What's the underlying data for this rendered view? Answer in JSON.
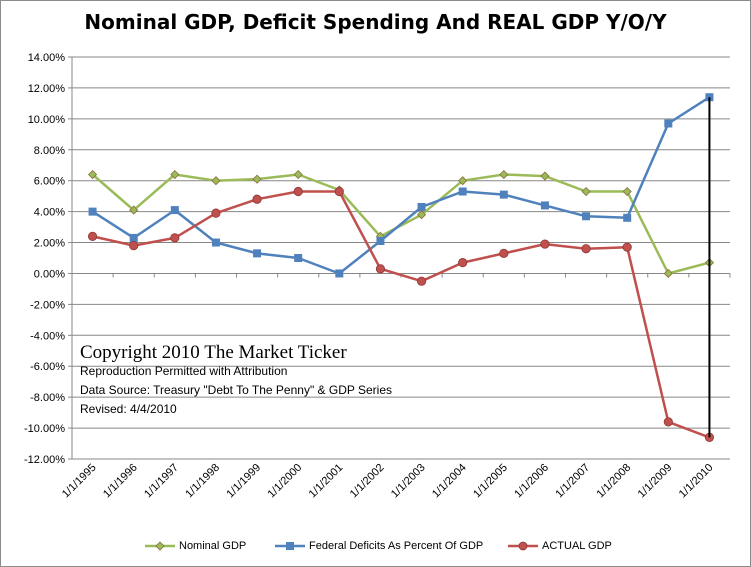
{
  "chart_data": {
    "type": "line",
    "title": "Nominal GDP, Deficit Spending And REAL GDP Y/O/Y",
    "xlabel": "",
    "ylabel": "",
    "categories": [
      "1/1/1995",
      "1/1/1996",
      "1/1/1997",
      "1/1/1998",
      "1/1/1999",
      "1/1/2000",
      "1/1/2001",
      "1/1/2002",
      "1/1/2003",
      "1/1/2004",
      "1/1/2005",
      "1/1/2006",
      "1/1/2007",
      "1/1/2008",
      "1/1/2009",
      "1/1/2010"
    ],
    "ylim": [
      -12,
      14
    ],
    "yticks": [
      "14.00%",
      "12.00%",
      "10.00%",
      "8.00%",
      "6.00%",
      "4.00%",
      "2.00%",
      "0.00%",
      "-2.00%",
      "-4.00%",
      "-6.00%",
      "-8.00%",
      "-10.00%",
      "-12.00%"
    ],
    "grid": "horizontal",
    "legend_position": "bottom",
    "series": [
      {
        "name": "Nominal GDP",
        "color": "#9bbb59",
        "marker": "diamond",
        "values": [
          6.4,
          4.1,
          6.4,
          6.0,
          6.1,
          6.4,
          5.4,
          2.4,
          3.8,
          6.0,
          6.4,
          6.3,
          5.3,
          5.3,
          0.0,
          0.7
        ]
      },
      {
        "name": "Federal Deficits As Percent Of GDP",
        "color": "#4f81bd",
        "marker": "square",
        "values": [
          4.0,
          2.3,
          4.1,
          2.0,
          1.3,
          1.0,
          0.0,
          2.1,
          4.3,
          5.3,
          5.1,
          4.4,
          3.7,
          3.6,
          9.7,
          11.4
        ]
      },
      {
        "name": "ACTUAL GDP",
        "color": "#c0504d",
        "marker": "circle",
        "values": [
          2.4,
          1.8,
          2.3,
          3.9,
          4.8,
          5.3,
          5.3,
          0.3,
          -0.5,
          0.7,
          1.3,
          1.9,
          1.6,
          1.7,
          -9.6,
          -10.6
        ]
      }
    ],
    "annotations": {
      "vertical_line": {
        "category": "1/1/2010",
        "from": -10.6,
        "to": 11.4,
        "color": "#000000"
      }
    }
  },
  "notes": {
    "copyright": "Copyright 2010 The Market Ticker",
    "line1": "Reproduction Permitted with Attribution",
    "line2": "Data Source:  Treasury \"Debt To The Penny\" & GDP Series",
    "line3": "Revised: 4/4/2010"
  }
}
